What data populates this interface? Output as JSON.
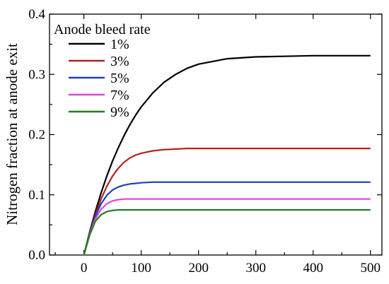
{
  "chart_data": {
    "type": "line",
    "title": "",
    "xlabel": "",
    "ylabel": "Nitrogen fraction at anode exit",
    "xlim": [
      -60,
      520
    ],
    "ylim": [
      0.0,
      0.4
    ],
    "x_ticks": [
      0,
      100,
      200,
      300,
      400,
      500
    ],
    "x_tick_labels": [
      "0",
      "100",
      "200",
      "300",
      "400",
      "500"
    ],
    "y_ticks": [
      0.0,
      0.1,
      0.2,
      0.3,
      0.4
    ],
    "y_tick_labels": [
      "0.0",
      "0.1",
      "0.2",
      "0.3",
      "0.4"
    ],
    "grid": false,
    "legend": {
      "title": "Anode bleed rate",
      "position": "top-left"
    },
    "x": [
      0,
      10,
      20,
      30,
      40,
      50,
      60,
      70,
      80,
      90,
      100,
      120,
      140,
      160,
      180,
      200,
      250,
      300,
      350,
      400,
      450,
      500
    ],
    "series": [
      {
        "name": "1%",
        "color": "#000000",
        "values": [
          0.0,
          0.038,
          0.072,
          0.103,
          0.131,
          0.156,
          0.178,
          0.198,
          0.216,
          0.232,
          0.246,
          0.269,
          0.287,
          0.3,
          0.31,
          0.317,
          0.326,
          0.329,
          0.33,
          0.331,
          0.331,
          0.331
        ]
      },
      {
        "name": "3%",
        "color": "#b22222",
        "values": [
          0.0,
          0.036,
          0.067,
          0.093,
          0.114,
          0.131,
          0.144,
          0.154,
          0.161,
          0.166,
          0.169,
          0.173,
          0.175,
          0.176,
          0.177,
          0.177,
          0.177,
          0.177,
          0.177,
          0.177,
          0.177,
          0.177
        ]
      },
      {
        "name": "5%",
        "color": "#1f3fbf",
        "values": [
          0.0,
          0.035,
          0.064,
          0.085,
          0.099,
          0.108,
          0.113,
          0.116,
          0.118,
          0.119,
          0.12,
          0.121,
          0.121,
          0.121,
          0.121,
          0.121,
          0.121,
          0.121,
          0.121,
          0.121,
          0.121,
          0.121
        ]
      },
      {
        "name": "7%",
        "color": "#d946d9",
        "values": [
          0.0,
          0.034,
          0.06,
          0.076,
          0.085,
          0.09,
          0.092,
          0.093,
          0.093,
          0.093,
          0.093,
          0.093,
          0.093,
          0.093,
          0.093,
          0.093,
          0.093,
          0.093,
          0.093,
          0.093,
          0.093,
          0.093
        ]
      },
      {
        "name": "9%",
        "color": "#1f7f1f",
        "values": [
          0.0,
          0.033,
          0.056,
          0.067,
          0.072,
          0.074,
          0.075,
          0.075,
          0.075,
          0.075,
          0.075,
          0.075,
          0.075,
          0.075,
          0.075,
          0.075,
          0.075,
          0.075,
          0.075,
          0.075,
          0.075,
          0.075
        ]
      }
    ]
  }
}
